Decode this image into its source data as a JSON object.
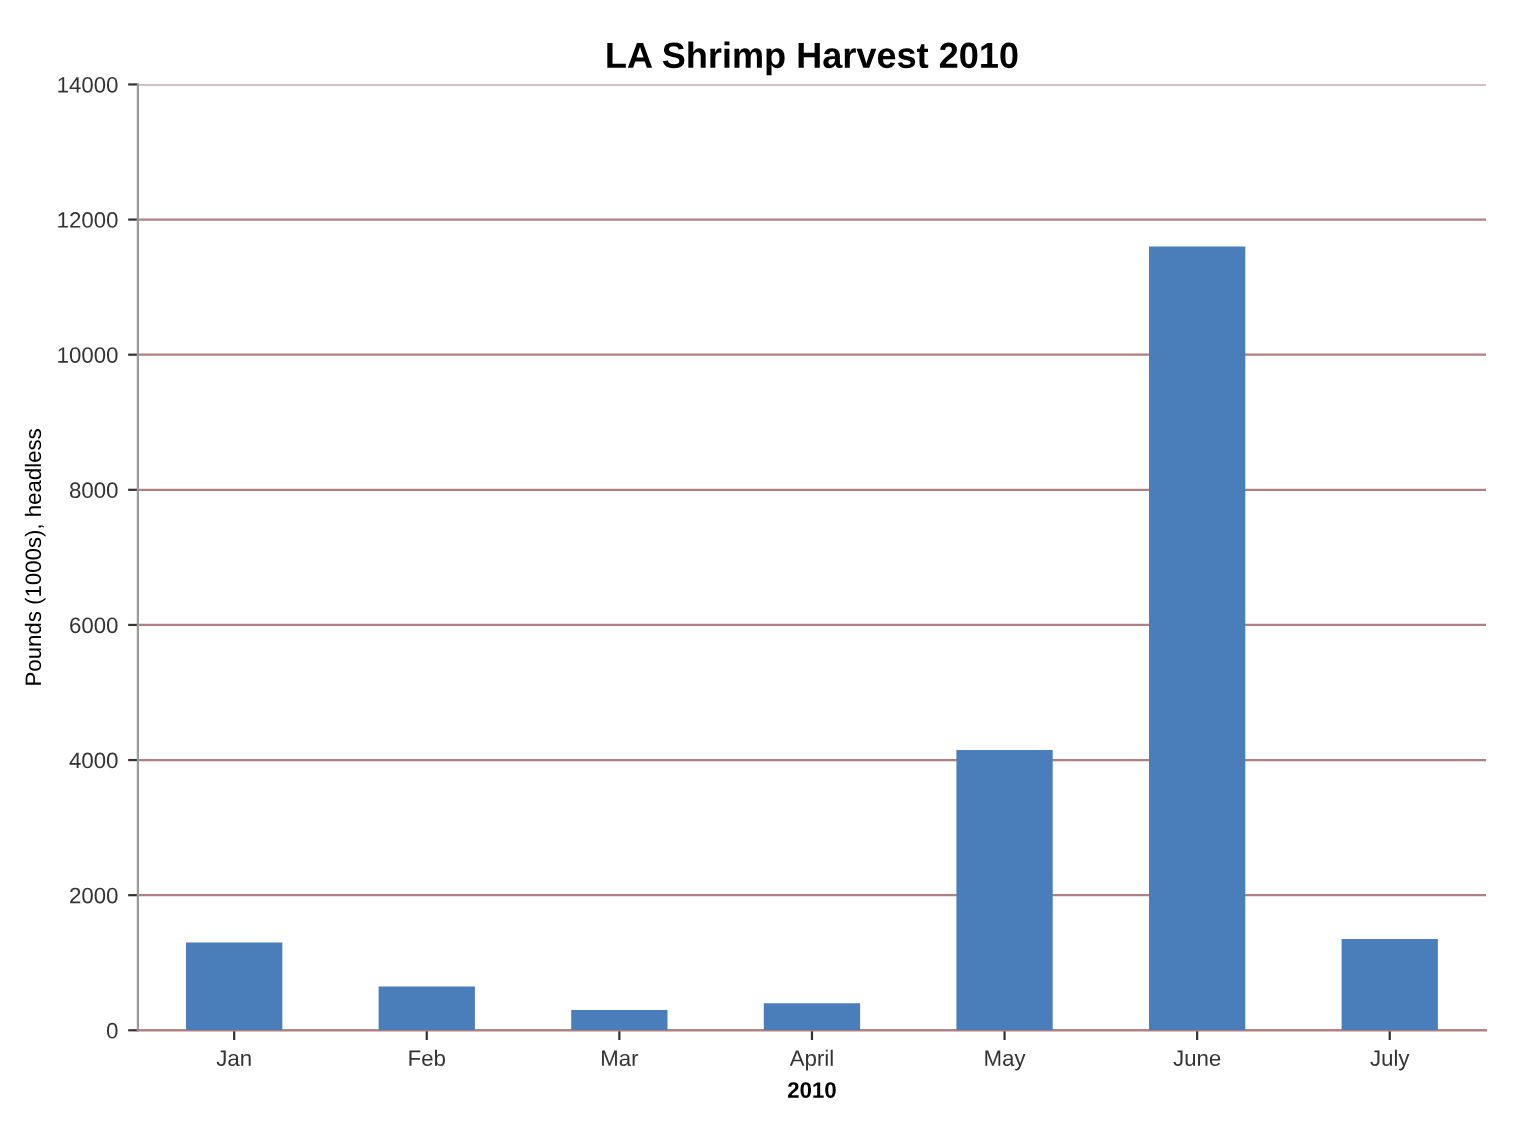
{
  "chart_data": {
    "type": "bar",
    "title": "LA Shrimp Harvest 2010",
    "xlabel": "2010",
    "ylabel": "Pounds (1000s), headless",
    "categories": [
      "Jan",
      "Feb",
      "Mar",
      "April",
      "May",
      "June",
      "July"
    ],
    "series": [
      {
        "color": "#4a7ebb",
        "values": [
          1300,
          650,
          300,
          400,
          4150,
          11600,
          1350
        ]
      }
    ],
    "ylim": [
      0,
      14000
    ],
    "yticks": [
      0,
      2000,
      4000,
      6000,
      8000,
      10000,
      12000,
      14000
    ],
    "grid": "y",
    "legend": false
  }
}
